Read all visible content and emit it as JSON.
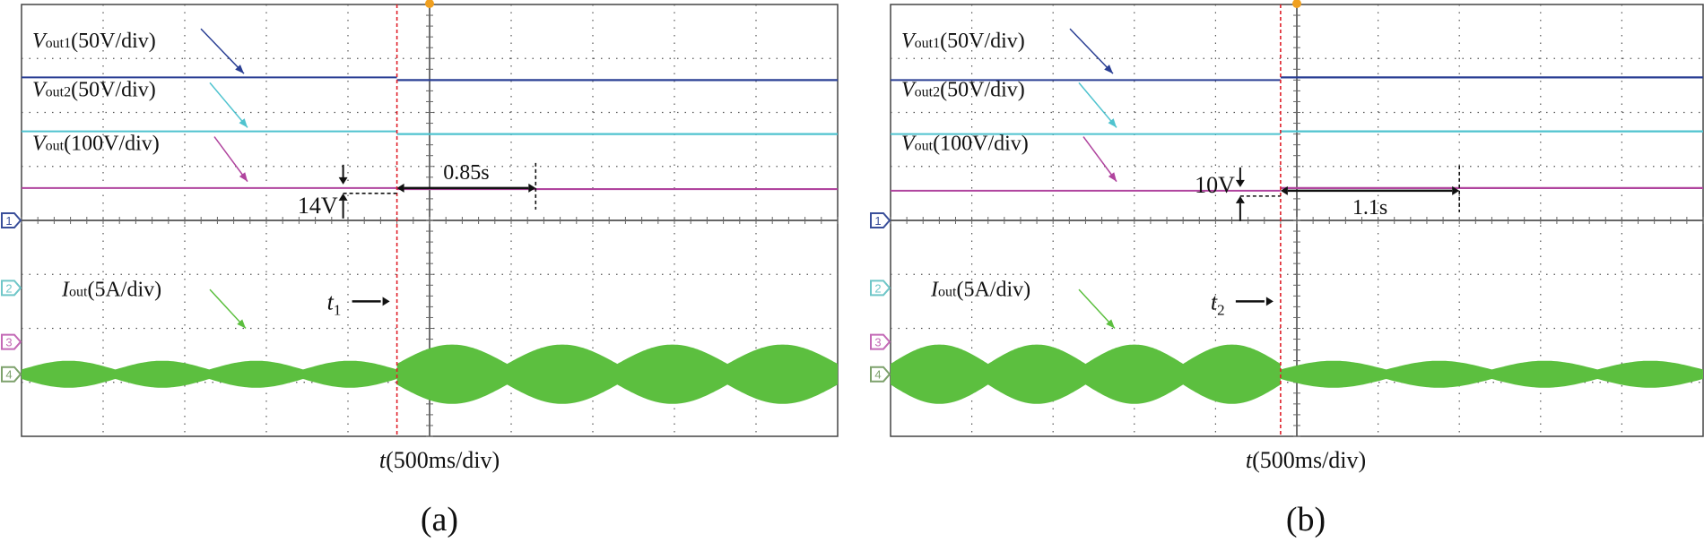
{
  "colors": {
    "vout1": "#2a3f94",
    "vout2": "#4fc3cf",
    "vout": "#b0449e",
    "iout": "#5cbf3f",
    "marker_line": "#e0202a",
    "ch1": "#3a4f9a",
    "ch2": "#6fc6c8",
    "ch3": "#c46ab6",
    "ch4": "#7da16c"
  },
  "chart_data": [
    {
      "type": "line",
      "panel_label": "(a)",
      "xlabel": "t(500ms/div)",
      "xlabel_italic": "t",
      "xlabel_rest": "(500ms/div)",
      "x_divisions": 10,
      "y_divisions": 8,
      "channel_markers": [
        "1",
        "2",
        "3",
        "4"
      ],
      "event": {
        "label_main": "t",
        "label_sub": "1",
        "time_div": 4.6
      },
      "annotations": {
        "dv": "14V",
        "dt": "0.85s",
        "dt_time_div": 1.7
      },
      "series": [
        {
          "name_main": "V",
          "name_sub": "out1",
          "name_unit": "(50V/div)",
          "pre_level_div": 6.65,
          "post_level_div": 6.6
        },
        {
          "name_main": "V",
          "name_sub": "out2",
          "name_unit": "(50V/div)",
          "pre_level_div": 5.65,
          "post_level_div": 5.6
        },
        {
          "name_main": "V",
          "name_sub": "out",
          "name_unit": "(100V/div)",
          "pre_level_div": 4.6,
          "post_level_div": 4.58
        },
        {
          "name_main": "I",
          "name_sub": "out",
          "name_unit": "(5A/div)",
          "center_div": 1.15,
          "pre_amplitude_div": 0.25,
          "post_amplitude_div": 0.55,
          "pre_envelope_cycles": 4,
          "post_envelope_cycles": 4
        }
      ]
    },
    {
      "type": "line",
      "panel_label": "(b)",
      "xlabel": "t(500ms/div)",
      "xlabel_italic": "t",
      "xlabel_rest": "(500ms/div)",
      "x_divisions": 10,
      "y_divisions": 8,
      "channel_markers": [
        "1",
        "2",
        "3",
        "4"
      ],
      "event": {
        "label_main": "t",
        "label_sub": "2",
        "time_div": 4.8
      },
      "annotations": {
        "dv": "10V",
        "dt": "1.1s",
        "dt_time_div": 2.2
      },
      "series": [
        {
          "name_main": "V",
          "name_sub": "out1",
          "name_unit": "(50V/div)",
          "pre_level_div": 6.6,
          "post_level_div": 6.65
        },
        {
          "name_main": "V",
          "name_sub": "out2",
          "name_unit": "(50V/div)",
          "pre_level_div": 5.6,
          "post_level_div": 5.65
        },
        {
          "name_main": "V",
          "name_sub": "out",
          "name_unit": "(100V/div)",
          "pre_level_div": 4.55,
          "post_level_div": 4.6
        },
        {
          "name_main": "I",
          "name_sub": "out",
          "name_unit": "(5A/div)",
          "center_div": 1.15,
          "pre_amplitude_div": 0.55,
          "post_amplitude_div": 0.25,
          "pre_envelope_cycles": 4,
          "post_envelope_cycles": 4
        }
      ]
    }
  ]
}
